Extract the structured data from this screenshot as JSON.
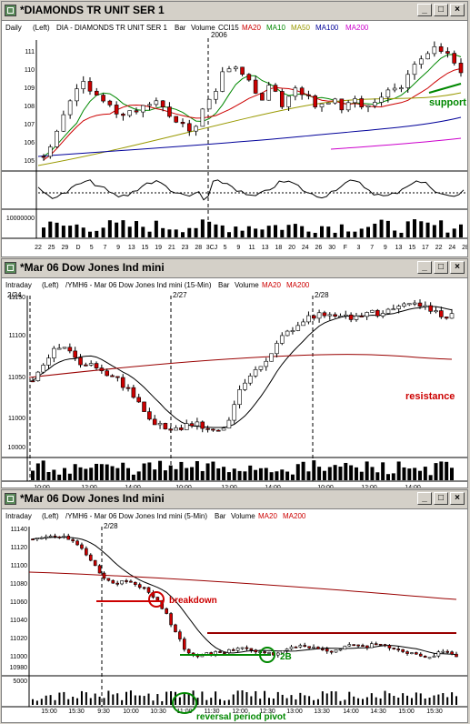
{
  "colors": {
    "up": "#ffffff",
    "down": "#cc0000",
    "ma20": "#cc0000",
    "ma10": "#008800",
    "ma50": "#999900",
    "ma100": "#000099",
    "ma200": "#cc00cc",
    "annotation_red": "#cc0000",
    "annotation_green": "#008800"
  },
  "windows": [
    {
      "title": "*DIAMONDS TR UNIT SER 1",
      "info": {
        "period": "Daily",
        "axis_side": "(Left)",
        "symbol": "DIA - DIAMONDS TR UNIT SER 1",
        "type": "Bar",
        "volume": "Volume",
        "cci": "CCI15",
        "ma_a": "MA20",
        "ma_b": "MA10",
        "ma_c": "MA50",
        "ma_d": "MA100",
        "ma_e": "MA200"
      },
      "year_label": "2006",
      "y_ticks": [
        "111",
        "110",
        "109",
        "108",
        "107",
        "106",
        "105"
      ],
      "volume_label": "10000000",
      "x_labels": [
        "22",
        "25",
        "29",
        "D",
        "5",
        "7",
        "9",
        "13",
        "15",
        "19",
        "21",
        "23",
        "28",
        "3CJ",
        "5",
        "9",
        "11",
        "13",
        "18",
        "20",
        "24",
        "26",
        "30",
        "F",
        "3",
        "7",
        "9",
        "13",
        "15",
        "17",
        "22",
        "24",
        "28"
      ],
      "annotation": "support"
    },
    {
      "title": "*Mar 06  Dow Jones Ind mini",
      "info": {
        "period": "Intraday",
        "axis_side": "(Left)",
        "symbol": "/YMH6 - Mar 06  Dow Jones Ind mini (15-Min)",
        "type": "Bar",
        "volume": "Volume",
        "ma_a": "MA20",
        "ma_e": "MA200"
      },
      "date_labels": [
        "2/24",
        "2/27",
        "2/28"
      ],
      "y_ticks": [
        "11150",
        "11100",
        "11050",
        "11000"
      ],
      "volume_label": "10000",
      "x_labels": [
        "10:00",
        "12:00",
        "14:00",
        "10:00",
        "12:00",
        "14:00",
        "10:00",
        "12:00",
        "14:00"
      ],
      "annotation": "resistance"
    },
    {
      "title": "*Mar 06  Dow Jones Ind mini",
      "info": {
        "period": "Intraday",
        "axis_side": "(Left)",
        "symbol": "/YMH6 - Mar 06  Dow Jones Ind mini (5-Min)",
        "type": "Bar",
        "volume": "Volume",
        "ma_a": "MA20",
        "ma_e": "MA200"
      },
      "date_label": "2/28",
      "y_ticks": [
        "11140",
        "11120",
        "11100",
        "11080",
        "11060",
        "11040",
        "11020",
        "11000",
        "10980"
      ],
      "volume_label": "5000",
      "x_labels": [
        "15:00",
        "15:30",
        "9:30",
        "10:00",
        "10:30",
        "11:00",
        "11:30",
        "12:00",
        "12:30",
        "13:00",
        "13:30",
        "14:00",
        "14:30",
        "15:00",
        "15:30"
      ],
      "annotations": {
        "breakdown": "breakdown",
        "twob": "2B",
        "pivot": "reversal period pivot"
      }
    }
  ]
}
